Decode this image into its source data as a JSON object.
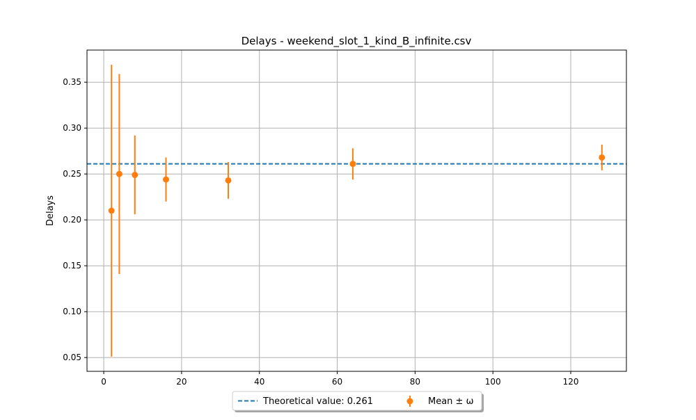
{
  "chart_data": {
    "type": "scatter",
    "title": "Delays - weekend_slot_1_kind_B_infinite.csv",
    "xlabel": "",
    "ylabel": "Delays",
    "xlim": [
      -4.3,
      134.3
    ],
    "ylim": [
      0.035,
      0.385
    ],
    "xticks": [
      0,
      20,
      40,
      60,
      80,
      100,
      120
    ],
    "yticks": [
      0.05,
      0.1,
      0.15,
      0.2,
      0.25,
      0.3,
      0.35
    ],
    "grid": true,
    "legend_position": "bottom-center (below axes)",
    "reference_line": {
      "label": "Theoretical value: 0.261",
      "y": 0.261,
      "style": "dashed",
      "color": "#1f77b4"
    },
    "series": [
      {
        "name": "Mean ± ω",
        "color": "#ff7f0e",
        "points": [
          {
            "x": 2,
            "y": 0.21,
            "yerr_low": 0.051,
            "yerr_high": 0.369
          },
          {
            "x": 4,
            "y": 0.25,
            "yerr_low": 0.141,
            "yerr_high": 0.359
          },
          {
            "x": 8,
            "y": 0.249,
            "yerr_low": 0.206,
            "yerr_high": 0.292
          },
          {
            "x": 16,
            "y": 0.244,
            "yerr_low": 0.22,
            "yerr_high": 0.268
          },
          {
            "x": 32,
            "y": 0.243,
            "yerr_low": 0.223,
            "yerr_high": 0.263
          },
          {
            "x": 64,
            "y": 0.261,
            "yerr_low": 0.244,
            "yerr_high": 0.278
          },
          {
            "x": 128,
            "y": 0.268,
            "yerr_low": 0.254,
            "yerr_high": 0.282
          }
        ]
      }
    ]
  }
}
